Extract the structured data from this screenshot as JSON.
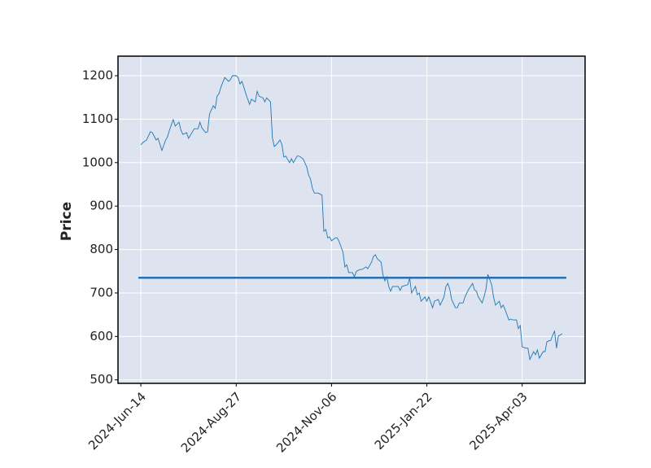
{
  "chart_data": {
    "type": "line",
    "ylabel": "Price",
    "color": "#1f77b4",
    "x": [
      0,
      1,
      3,
      5,
      6,
      8,
      9,
      11,
      13,
      14,
      15,
      17,
      18,
      20,
      21,
      22,
      24,
      25,
      26,
      28,
      30,
      31,
      32,
      34,
      35,
      36,
      38,
      39,
      40,
      41,
      42,
      44,
      46,
      47,
      48,
      50,
      51,
      52,
      53,
      54,
      55,
      57,
      58,
      60,
      61,
      62,
      64,
      65,
      66,
      68,
      69,
      70,
      71,
      73,
      74,
      75,
      76,
      78,
      79,
      80,
      82,
      83,
      85,
      86,
      87,
      88,
      89,
      90,
      91,
      93,
      95,
      96,
      97,
      98,
      99,
      100,
      102,
      103,
      104,
      106,
      107,
      108,
      109,
      111,
      112,
      113,
      115,
      116,
      118,
      119,
      121,
      122,
      123,
      124,
      126,
      127,
      128,
      129,
      130,
      131,
      132,
      135,
      136,
      137,
      140,
      141,
      142,
      144,
      145,
      146,
      147,
      149,
      150,
      151,
      153,
      154,
      156,
      157,
      159,
      160,
      161,
      162,
      163,
      165,
      166,
      167,
      169,
      170,
      171,
      172,
      174,
      175,
      176,
      177,
      179,
      180,
      181,
      182,
      184,
      185,
      186,
      188,
      189,
      190,
      191,
      193,
      194,
      195,
      197,
      198,
      199,
      200,
      202,
      203,
      204,
      206,
      207,
      208,
      209,
      211,
      212,
      213,
      215,
      216,
      217,
      218,
      219,
      221
    ],
    "values": [
      1041,
      1046,
      1052,
      1071,
      1069,
      1052,
      1056,
      1028,
      1052,
      1060,
      1075,
      1099,
      1084,
      1093,
      1075,
      1065,
      1069,
      1056,
      1063,
      1078,
      1078,
      1093,
      1080,
      1069,
      1071,
      1112,
      1131,
      1125,
      1153,
      1159,
      1174,
      1196,
      1187,
      1191,
      1200,
      1200,
      1196,
      1181,
      1187,
      1174,
      1159,
      1134,
      1146,
      1140,
      1164,
      1153,
      1149,
      1140,
      1149,
      1140,
      1056,
      1037,
      1041,
      1052,
      1041,
      1013,
      1015,
      1000,
      1009,
      1000,
      1015,
      1015,
      1009,
      1000,
      990,
      971,
      962,
      940,
      930,
      930,
      925,
      842,
      846,
      827,
      829,
      820,
      827,
      827,
      818,
      794,
      760,
      765,
      747,
      747,
      737,
      750,
      754,
      754,
      760,
      756,
      771,
      784,
      788,
      779,
      771,
      741,
      728,
      737,
      715,
      704,
      715,
      715,
      706,
      715,
      719,
      734,
      700,
      715,
      696,
      700,
      681,
      691,
      681,
      691,
      666,
      681,
      685,
      672,
      691,
      715,
      722,
      709,
      685,
      666,
      666,
      677,
      677,
      691,
      700,
      709,
      722,
      707,
      704,
      691,
      677,
      691,
      709,
      743,
      719,
      691,
      672,
      681,
      666,
      672,
      662,
      638,
      640,
      638,
      638,
      618,
      625,
      576,
      573,
      573,
      547,
      565,
      558,
      569,
      550,
      565,
      565,
      588,
      591,
      603,
      612,
      573,
      601,
      606
    ],
    "hlines": [
      735
    ],
    "hline_color": "#2a6fb0",
    "xlim": [
      -12,
      233
    ],
    "xticks": [
      {
        "value": 0,
        "label": "2024-Jun-14"
      },
      {
        "value": 50,
        "label": "2024-Aug-27"
      },
      {
        "value": 100,
        "label": "2024-Nov-06"
      },
      {
        "value": 150,
        "label": "2025-Jan-22"
      },
      {
        "value": 200,
        "label": "2025-Apr-03"
      }
    ],
    "ylim": [
      492,
      1245
    ],
    "yticks": [
      500,
      600,
      700,
      800,
      900,
      1000,
      1100,
      1200
    ],
    "grid": true,
    "background": "#dde3ef"
  }
}
